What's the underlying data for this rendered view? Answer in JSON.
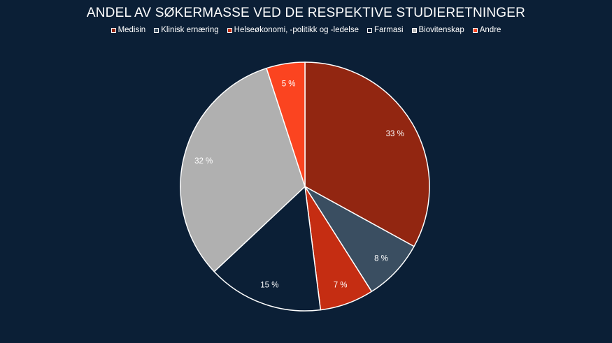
{
  "chart_data": {
    "type": "pie",
    "title": "ANDEL AV SØKERMASSE VED DE RESPEKTIVE STUDIERETNINGER",
    "legend_position": "top",
    "series": [
      {
        "name": "Medisin",
        "value": 33,
        "label": "33 %",
        "color": "#922611"
      },
      {
        "name": "Klinisk ernæring",
        "value": 8,
        "label": "8 %",
        "color": "#3a4e61"
      },
      {
        "name": "Helseøkonomi, -politikk og -ledelse",
        "value": 7,
        "label": "7 %",
        "color": "#c52d12"
      },
      {
        "name": "Farmasi",
        "value": 15,
        "label": "15 %",
        "color": "#0b1f36"
      },
      {
        "name": "Biovitenskap",
        "value": 32,
        "label": "32 %",
        "color": "#b0b0b0"
      },
      {
        "name": "Andre",
        "value": 5,
        "label": "5 %",
        "color": "#fb4420"
      }
    ]
  }
}
